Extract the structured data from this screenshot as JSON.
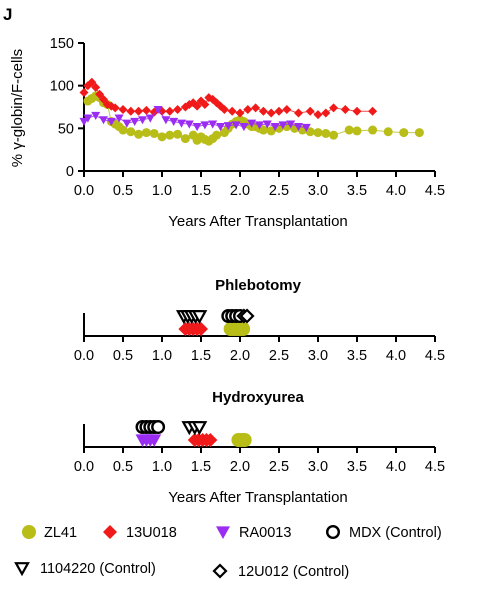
{
  "panel_label": "J",
  "colors": {
    "ZL41": "#b8bd17",
    "13U018": "#f01a1a",
    "RA0013": "#9b2df2",
    "black": "#000000"
  },
  "legend": {
    "items": [
      {
        "key": "ZL41",
        "label": "ZL41",
        "shape": "circle"
      },
      {
        "key": "13U018",
        "label": "13U018",
        "shape": "diamond"
      },
      {
        "key": "RA0013",
        "label": "RA0013",
        "shape": "triangle-down"
      },
      {
        "key": "MDX",
        "label": "MDX (Control)",
        "shape": "circle-open"
      },
      {
        "key": "1104220",
        "label": "1104220 (Control)",
        "shape": "triangle-down-open"
      },
      {
        "key": "12U012",
        "label": "12U012 (Control)",
        "shape": "diamond-open"
      }
    ]
  },
  "chart_data": [
    {
      "type": "scatter",
      "title": "",
      "xlabel": "Years After Transplantation",
      "ylabel": "% γ-globin/F-cells",
      "xlim": [
        0,
        4.5
      ],
      "ylim": [
        0,
        150
      ],
      "xticks": [
        "0.0",
        "0.5",
        "1.0",
        "1.5",
        "2.0",
        "2.5",
        "3.0",
        "3.5",
        "4.0",
        "4.5"
      ],
      "yticks": [
        "0",
        "50",
        "100",
        "150"
      ],
      "series": [
        {
          "name": "ZL41",
          "connected": true,
          "x": [
            0.05,
            0.1,
            0.15,
            0.2,
            0.25,
            0.3,
            0.35,
            0.4,
            0.45,
            0.5,
            0.6,
            0.7,
            0.8,
            0.9,
            1.0,
            1.1,
            1.2,
            1.3,
            1.4,
            1.45,
            1.5,
            1.55,
            1.6,
            1.65,
            1.7,
            1.8,
            1.85,
            1.9,
            1.95,
            2.0,
            2.05,
            2.1,
            2.15,
            2.2,
            2.25,
            2.3,
            2.4,
            2.5,
            2.6,
            2.7,
            2.8,
            2.9,
            3.0,
            3.1,
            3.2,
            3.4,
            3.5,
            3.7,
            3.9,
            4.1,
            4.3
          ],
          "y": [
            82,
            85,
            88,
            86,
            80,
            78,
            58,
            55,
            52,
            48,
            46,
            43,
            45,
            44,
            40,
            42,
            43,
            38,
            42,
            36,
            40,
            37,
            35,
            38,
            42,
            45,
            50,
            55,
            58,
            60,
            58,
            55,
            52,
            52,
            50,
            48,
            47,
            50,
            52,
            50,
            48,
            46,
            45,
            44,
            42,
            48,
            47,
            48,
            46,
            45,
            45
          ]
        },
        {
          "name": "13U018",
          "connected": true,
          "x": [
            0.0,
            0.05,
            0.1,
            0.15,
            0.2,
            0.25,
            0.3,
            0.35,
            0.4,
            0.5,
            0.6,
            0.7,
            0.8,
            0.9,
            1.0,
            1.1,
            1.2,
            1.3,
            1.35,
            1.4,
            1.45,
            1.5,
            1.55,
            1.6,
            1.65,
            1.7,
            1.75,
            1.8,
            1.9,
            2.0,
            2.1,
            2.2,
            2.3,
            2.4,
            2.5,
            2.6,
            2.75,
            2.9,
            3.0,
            3.1,
            3.2,
            3.35,
            3.5,
            3.7
          ],
          "y": [
            92,
            100,
            104,
            98,
            90,
            84,
            78,
            76,
            74,
            72,
            70,
            70,
            71,
            69,
            70,
            70,
            72,
            75,
            78,
            80,
            76,
            82,
            78,
            86,
            84,
            80,
            76,
            72,
            70,
            68,
            72,
            74,
            70,
            68,
            70,
            72,
            68,
            70,
            66,
            68,
            74,
            72,
            70,
            70
          ]
        },
        {
          "name": "RA0013",
          "connected": true,
          "x": [
            0.0,
            0.05,
            0.15,
            0.25,
            0.35,
            0.45,
            0.55,
            0.65,
            0.75,
            0.85,
            0.95,
            1.05,
            1.15,
            1.25,
            1.35,
            1.45,
            1.55,
            1.65,
            1.75,
            1.85,
            1.95,
            2.05,
            2.15,
            2.25,
            2.35,
            2.45,
            2.55,
            2.65,
            2.75,
            2.85
          ],
          "y": [
            58,
            62,
            65,
            60,
            58,
            62,
            56,
            58,
            60,
            62,
            72,
            60,
            58,
            56,
            55,
            52,
            54,
            55,
            52,
            53,
            54,
            52,
            56,
            54,
            55,
            52,
            54,
            55,
            52,
            51
          ]
        }
      ]
    },
    {
      "type": "scatter",
      "title": "Phlebotomy",
      "xlabel": "",
      "xlim": [
        0,
        4.5
      ],
      "xticks": [
        "0.0",
        "0.5",
        "1.0",
        "1.5",
        "2.0",
        "2.5",
        "3.0",
        "3.5",
        "4.0",
        "4.5"
      ],
      "series": [
        {
          "name": "ZL41",
          "x": [
            1.88,
            1.92,
            1.96,
            2.0,
            2.04
          ],
          "row": "bottom"
        },
        {
          "name": "13U018",
          "x": [
            1.3,
            1.35,
            1.4,
            1.45,
            1.5
          ],
          "row": "bottom"
        },
        {
          "name": "1104220",
          "x": [
            1.28,
            1.33,
            1.38,
            1.43,
            1.48
          ],
          "row": "top"
        },
        {
          "name": "MDX",
          "x": [
            1.85,
            1.9,
            1.95,
            2.0
          ],
          "row": "top"
        },
        {
          "name": "12U012",
          "x": [
            2.05,
            2.09
          ],
          "row": "top"
        }
      ]
    },
    {
      "type": "scatter",
      "title": "Hydroxyurea",
      "xlabel": "Years After Transplantation",
      "xlim": [
        0,
        4.5
      ],
      "xticks": [
        "0.0",
        "0.5",
        "1.0",
        "1.5",
        "2.0",
        "2.5",
        "3.0",
        "3.5",
        "4.0",
        "4.5"
      ],
      "series": [
        {
          "name": "ZL41",
          "x": [
            1.98,
            2.02,
            2.06
          ],
          "row": "bottom"
        },
        {
          "name": "13U018",
          "x": [
            1.42,
            1.47,
            1.52,
            1.57,
            1.62
          ],
          "row": "bottom"
        },
        {
          "name": "RA0013",
          "x": [
            0.75,
            0.8,
            0.85,
            0.9
          ],
          "row": "bottom"
        },
        {
          "name": "1104220",
          "x": [
            1.35,
            1.42,
            1.48
          ],
          "row": "top"
        },
        {
          "name": "MDX",
          "x": [
            0.75,
            0.8,
            0.85,
            0.9,
            0.95
          ],
          "row": "top"
        }
      ]
    }
  ]
}
